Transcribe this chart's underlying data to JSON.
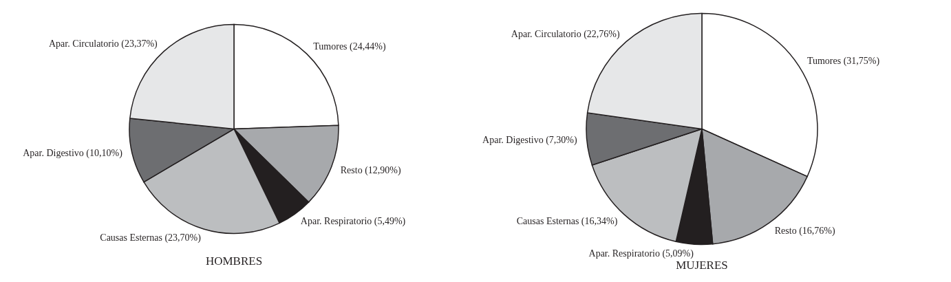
{
  "chart_data": [
    {
      "type": "pie",
      "title": "HOMBRES",
      "categories": [
        "Tumores (24,44%)",
        "Resto (12,90%)",
        "Apar. Respiratorio (5,49%)",
        "Causas Esternas (23,70%)",
        "Apar. Digestivo (10,10%)",
        "Apar. Circulatorio (23,37%)"
      ],
      "values": [
        24.44,
        12.9,
        5.49,
        23.7,
        10.1,
        23.37
      ],
      "colors": [
        "#ffffff",
        "#a7a9ac",
        "#231f20",
        "#bcbec0",
        "#6d6e71",
        "#e6e7e8"
      ]
    },
    {
      "type": "pie",
      "title": "MUJERES",
      "categories": [
        "Tumores (31,75%)",
        "Resto (16,76%)",
        "Apar. Respiratorio (5,09%)",
        "Causas Esternas (16,34%)",
        "Apar. Digestivo (7,30%)",
        "Apar. Circulatorio (22,76%)"
      ],
      "values": [
        31.75,
        16.76,
        5.09,
        16.34,
        7.3,
        22.76
      ],
      "colors": [
        "#ffffff",
        "#a7a9ac",
        "#231f20",
        "#bcbec0",
        "#6d6e71",
        "#e6e7e8"
      ]
    }
  ]
}
